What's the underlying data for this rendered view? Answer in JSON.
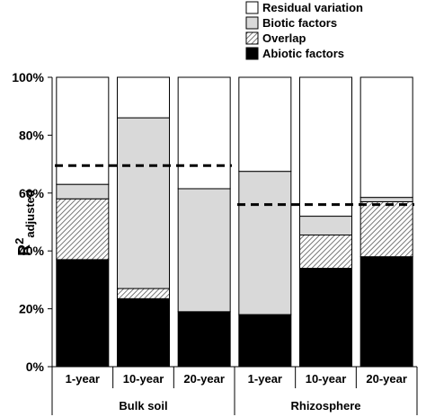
{
  "chart_data": {
    "type": "bar",
    "stacked": true,
    "ylabel": "R",
    "ylabel_superscript": "2",
    "ylabel_subscript": "adjusted",
    "ylim": [
      0,
      100
    ],
    "ytick_values": [
      0,
      20,
      40,
      60,
      80,
      100
    ],
    "ytick_labels": [
      "0%",
      "20%",
      "40%",
      "60%",
      "80%",
      "100%"
    ],
    "categories": [
      "1-year",
      "10-year",
      "20-year",
      "1-year",
      "10-year",
      "20-year"
    ],
    "groups": [
      {
        "label": "Bulk soil",
        "category_indices": [
          0,
          1,
          2
        ]
      },
      {
        "label": "Rhizosphere",
        "category_indices": [
          3,
          4,
          5
        ]
      }
    ],
    "series": [
      {
        "name": "Abiotic factors",
        "fill": "#000000",
        "pattern": "solid",
        "values": [
          37,
          23.5,
          19,
          18,
          34,
          38
        ]
      },
      {
        "name": "Overlap",
        "fill": "#ffffff",
        "pattern": "hatch",
        "values": [
          21,
          3.5,
          0,
          0,
          11.5,
          19
        ]
      },
      {
        "name": "Biotic factors",
        "fill": "#d9d9d9",
        "pattern": "solid",
        "values": [
          5,
          59,
          42.5,
          49.5,
          6.5,
          1.5
        ]
      },
      {
        "name": "Residual variation",
        "fill": "#ffffff",
        "pattern": "solid",
        "values": [
          37,
          14,
          38.5,
          32.5,
          48,
          41.5
        ]
      }
    ],
    "reference_lines": [
      {
        "group": "Bulk soil",
        "value": 69.5,
        "style": "dashed"
      },
      {
        "group": "Rhizosphere",
        "value": 56,
        "style": "dashed"
      }
    ],
    "legend": {
      "placement": "top-right",
      "order": [
        "Residual variation",
        "Biotic factors",
        "Overlap",
        "Abiotic factors"
      ]
    },
    "grid": false
  }
}
